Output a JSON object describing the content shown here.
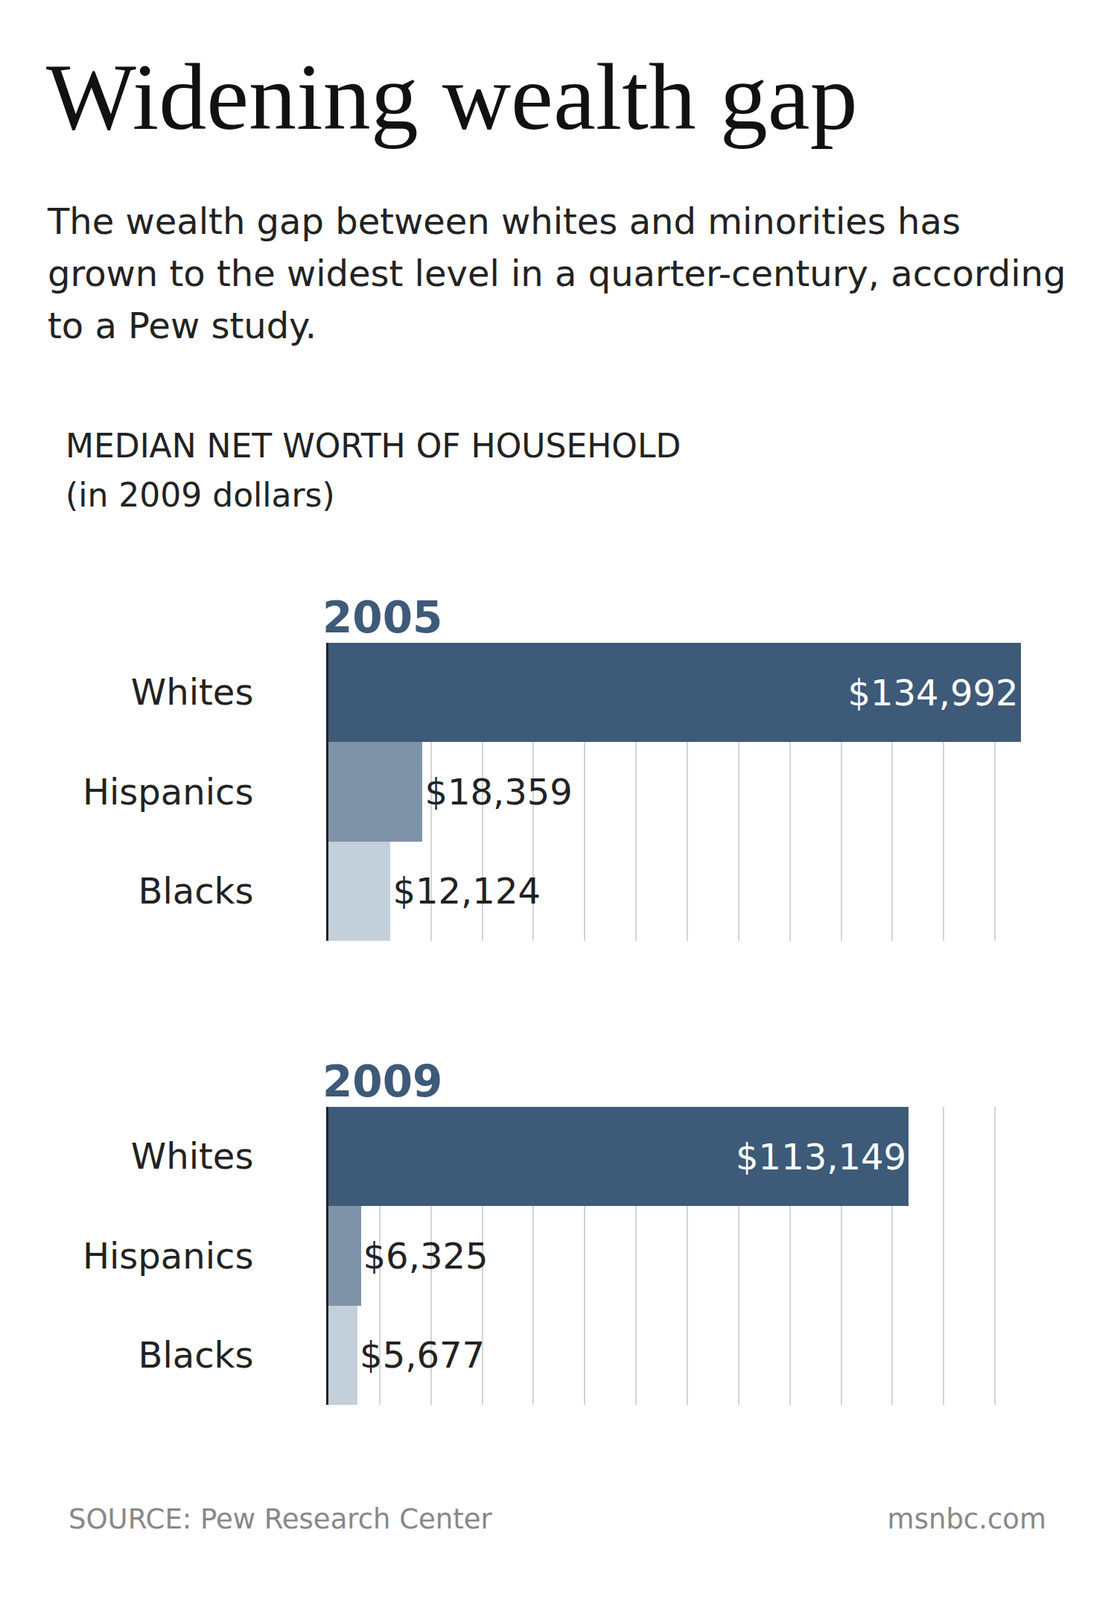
{
  "title": "Widening wealth gap",
  "subtitle": "The wealth gap between whites and minorities has grown to the widest level in a quarter-century, according to a Pew study.",
  "heading": [
    "MEDIAN NET WORTH OF HOUSEHOLD",
    "(in 2009 dollars)"
  ],
  "source": "SOURCE: Pew Research Center",
  "credit": "msnbc.com",
  "chart_data": [
    {
      "type": "bar",
      "title": "2005",
      "orientation": "horizontal",
      "categories": [
        "Whites",
        "Hispanics",
        "Blacks"
      ],
      "values": [
        134992,
        18359,
        12124
      ],
      "value_labels": [
        "$134,992",
        "$18,359",
        "$12,124"
      ],
      "colors": [
        "#3d5a78",
        "#7f93a8",
        "#c3d0da"
      ],
      "xlim": [
        0,
        140000
      ],
      "xticks": [
        0,
        10000,
        20000,
        30000,
        40000,
        50000,
        60000,
        70000,
        80000,
        90000,
        100000,
        110000,
        120000,
        130000,
        140000
      ],
      "grid": true,
      "data_labels": true,
      "tick_labels": "y"
    },
    {
      "type": "bar",
      "title": "2009",
      "orientation": "horizontal",
      "categories": [
        "Whites",
        "Hispanics",
        "Blacks"
      ],
      "values": [
        113149,
        6325,
        5677
      ],
      "value_labels": [
        "$113,149",
        "$6,325",
        "$5,677"
      ],
      "colors": [
        "#3d5a78",
        "#7f93a8",
        "#c3d0da"
      ],
      "xlim": [
        0,
        140000
      ],
      "xticks": [
        0,
        10000,
        20000,
        30000,
        40000,
        50000,
        60000,
        70000,
        80000,
        90000,
        100000,
        110000,
        120000,
        130000,
        140000
      ],
      "grid": true,
      "data_labels": true,
      "tick_labels": "y"
    }
  ]
}
